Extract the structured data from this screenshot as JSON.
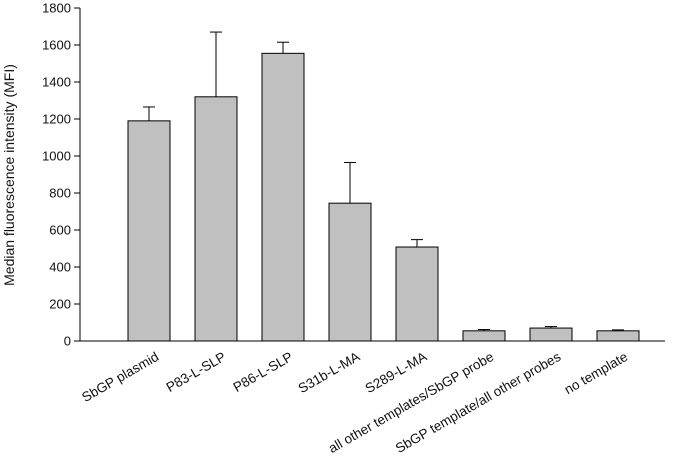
{
  "chart_data": {
    "type": "bar",
    "title": "",
    "xlabel": "",
    "ylabel": "Median fluorescence intensity (MFI)",
    "ylim": [
      0,
      1800
    ],
    "yticks": [
      0,
      200,
      400,
      600,
      800,
      1000,
      1200,
      1400,
      1600,
      1800
    ],
    "grid": false,
    "bar_color": "#c0c0c0",
    "edge_color": "#000000",
    "categories": [
      "SbGP plasmid",
      "P83-L-SLP",
      "P86-L-SLP",
      "S31b-L-MA",
      "S289-L-MA",
      "all other templates/SbGP probe",
      "SbGP template/all other probes",
      "no template"
    ],
    "values": [
      1190,
      1320,
      1555,
      745,
      508,
      55,
      70,
      55
    ],
    "error_upper": [
      1265,
      1670,
      1615,
      965,
      548,
      62,
      78,
      60
    ]
  }
}
